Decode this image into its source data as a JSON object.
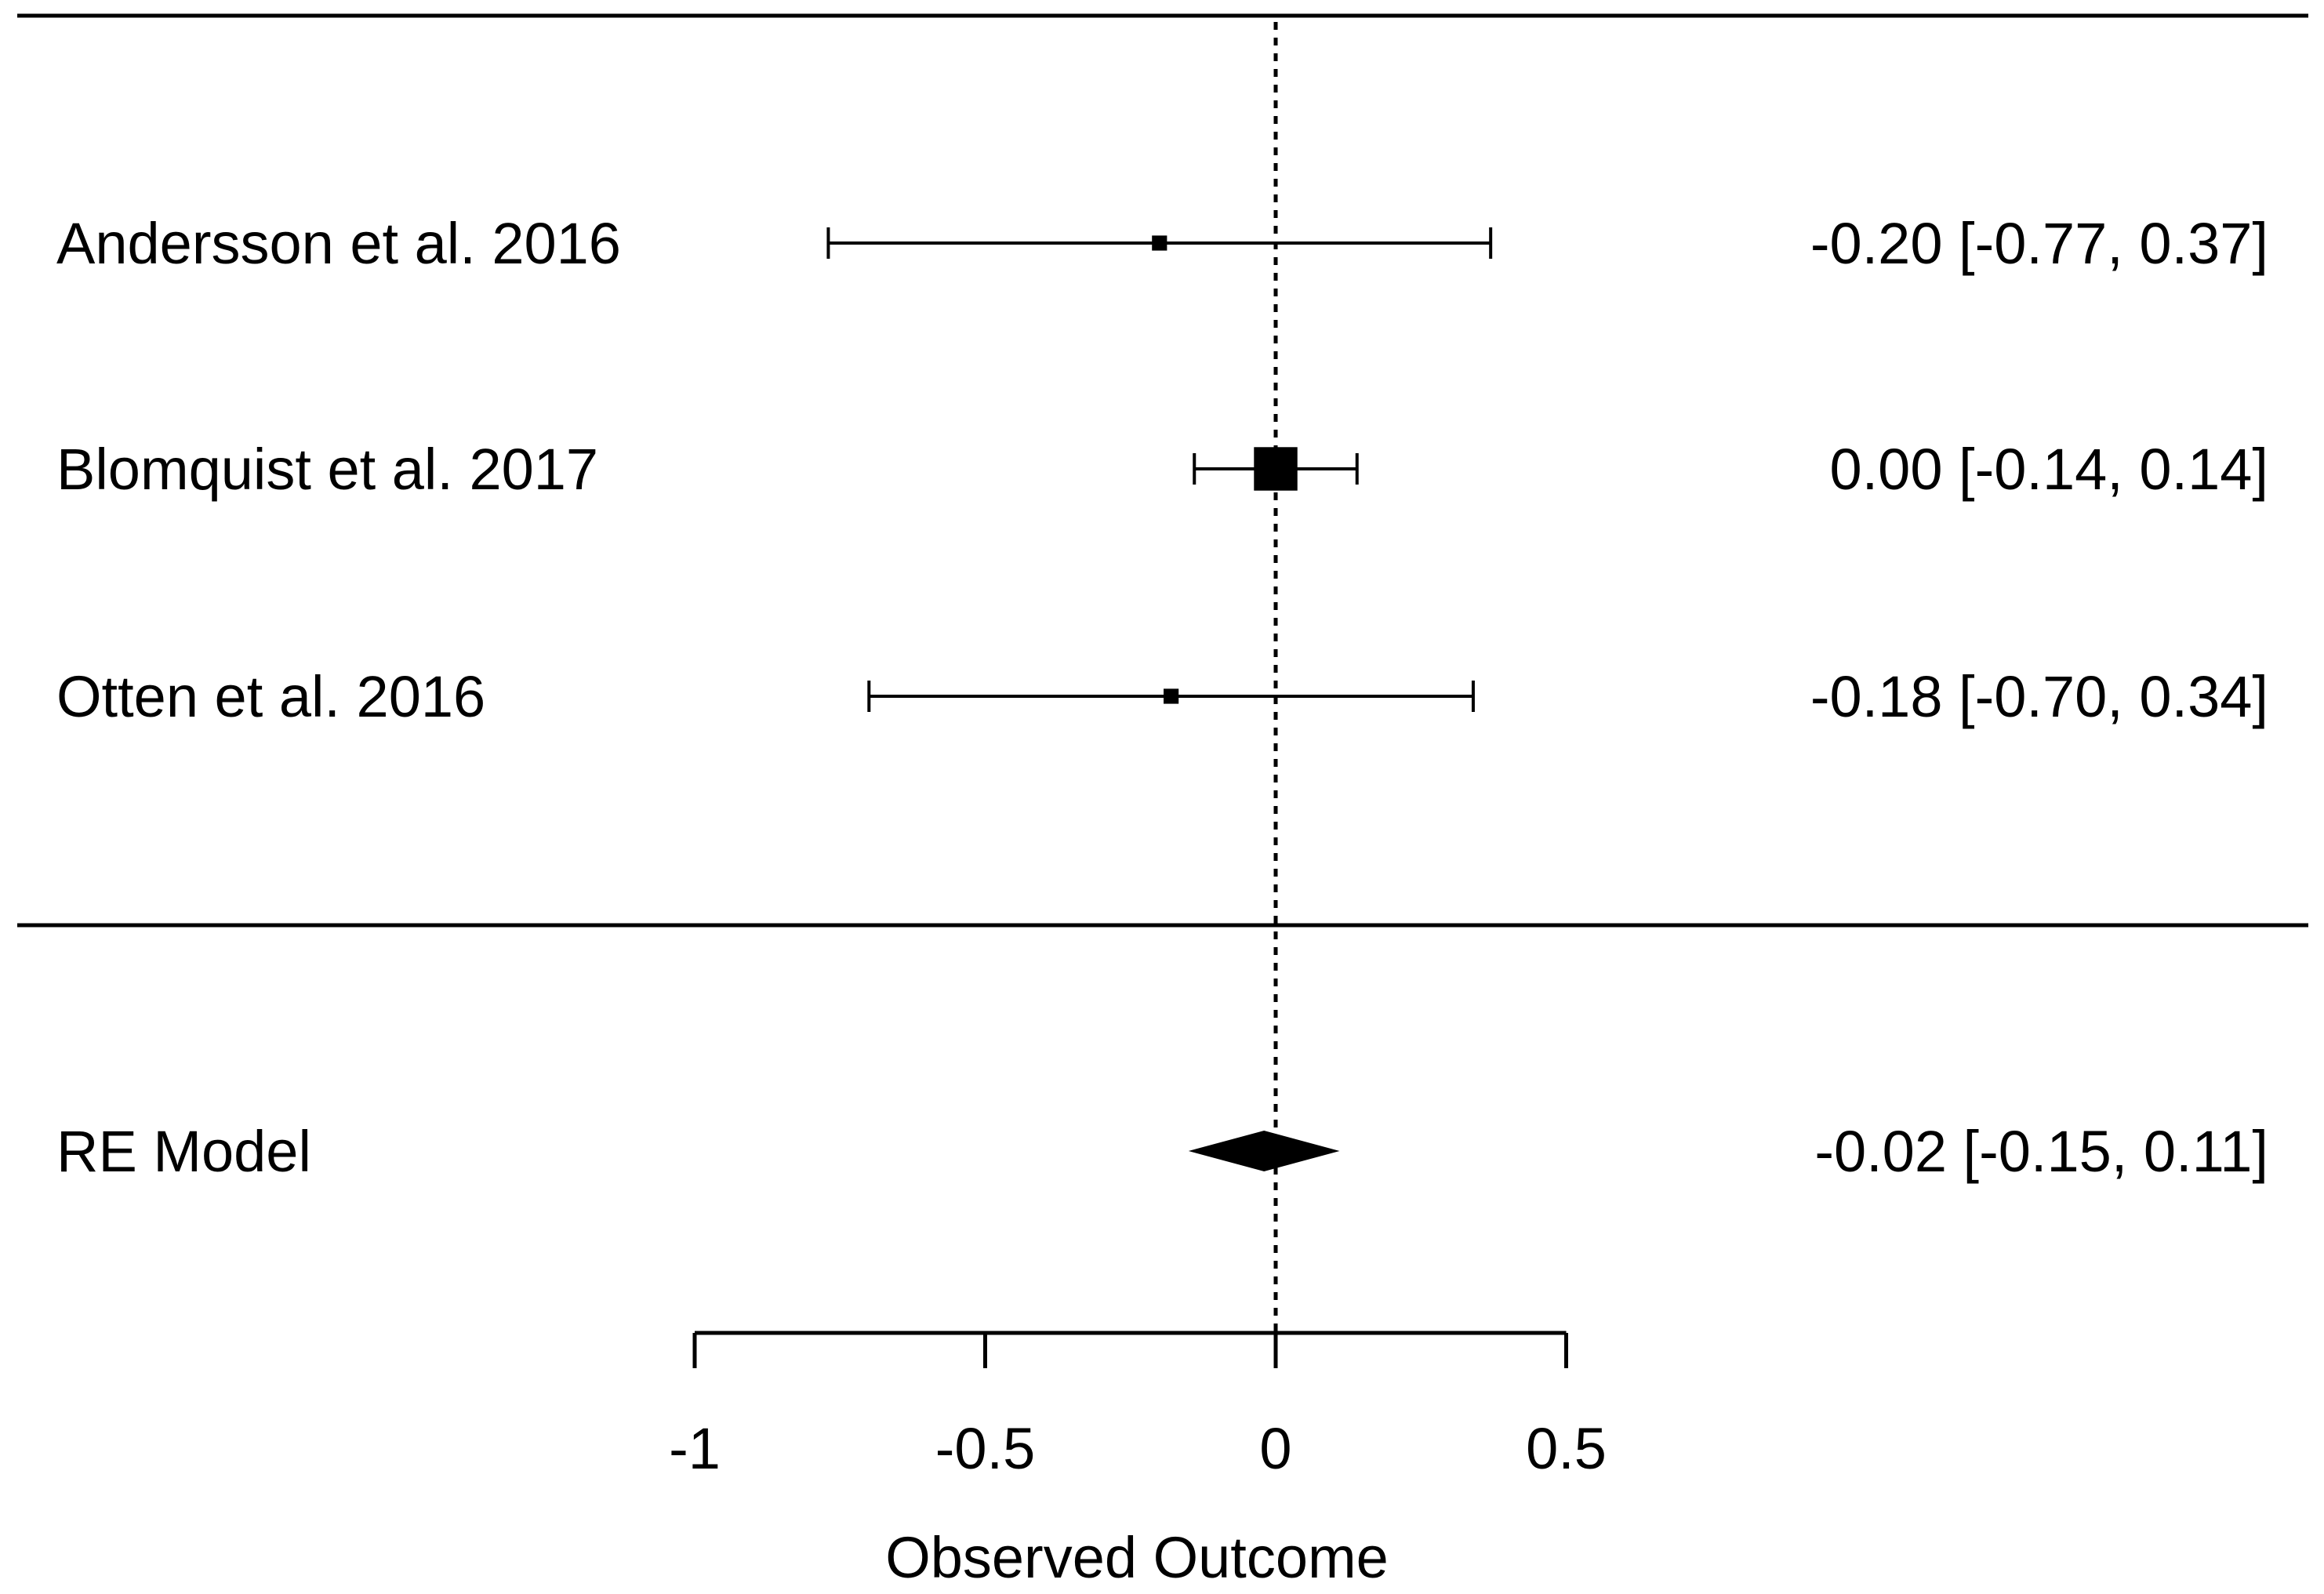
{
  "chart_data": {
    "type": "forest",
    "xlabel": "Observed Outcome",
    "xlim": [
      -1,
      0.5
    ],
    "x_ticks": [
      -1,
      -0.5,
      0,
      0.5
    ],
    "x_tick_labels": [
      "-1",
      "-0.5",
      "0",
      "0.5"
    ],
    "reference_line": 0,
    "studies": [
      {
        "label": "Andersson et al. 2016",
        "estimate": -0.2,
        "ci_low": -0.77,
        "ci_high": 0.37,
        "text": "-0.20 [-0.77, 0.37]",
        "weight": 0.05
      },
      {
        "label": "Blomquist et al.  2017",
        "estimate": 0.0,
        "ci_low": -0.14,
        "ci_high": 0.14,
        "text": "0.00 [-0.14, 0.14]",
        "weight": 0.9
      },
      {
        "label": "Otten et al. 2016",
        "estimate": -0.18,
        "ci_low": -0.7,
        "ci_high": 0.34,
        "text": "-0.18 [-0.70, 0.34]",
        "weight": 0.05
      }
    ],
    "summary": {
      "label": "RE Model",
      "estimate": -0.02,
      "ci_low": -0.15,
      "ci_high": 0.11,
      "text": "-0.02 [-0.15, 0.11]"
    }
  }
}
